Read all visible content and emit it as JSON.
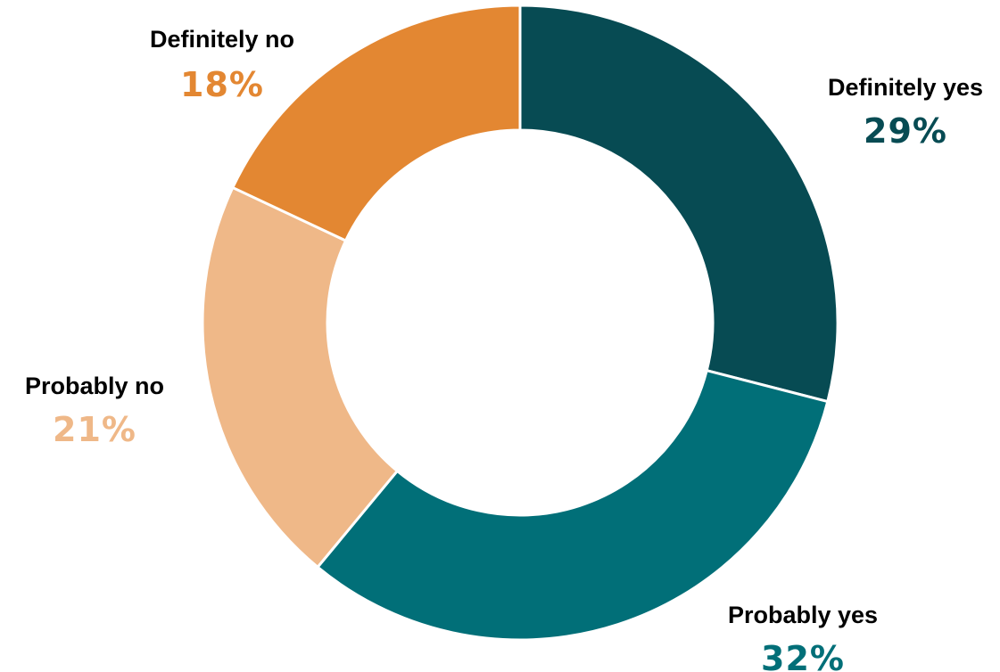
{
  "chart_data": {
    "type": "pie",
    "donut": true,
    "start_angle_deg": 0,
    "direction": "clockwise",
    "legend": "none",
    "slices": [
      {
        "label": "Definitely yes",
        "value": 29,
        "value_label": "29%",
        "color": "#074b53"
      },
      {
        "label": "Probably yes",
        "value": 32,
        "value_label": "32%",
        "color": "#016f78"
      },
      {
        "label": "Probably no",
        "value": 21,
        "value_label": "21%",
        "color": "#efb888"
      },
      {
        "label": "Definitely no",
        "value": 18,
        "value_label": "18%",
        "color": "#e38732"
      }
    ]
  }
}
